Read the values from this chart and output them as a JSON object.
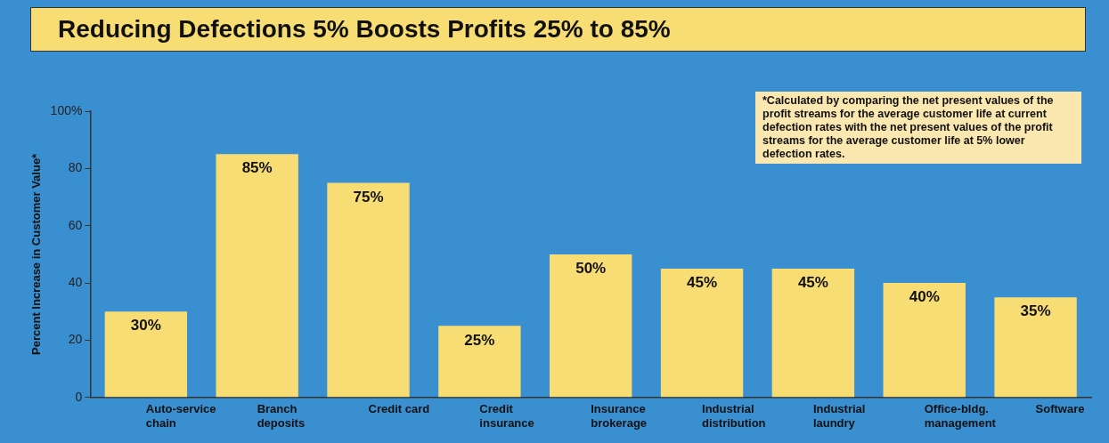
{
  "chart_data": {
    "type": "bar",
    "title": "Reducing Defections 5% Boosts Profits 25% to 85%",
    "ylabel": "Percent Increase in Customer Value*",
    "categories": [
      "Auto-service chain",
      "Branch deposits",
      "Credit card",
      "Credit insurance",
      "Insurance brokerage",
      "Industrial distribution",
      "Industrial laundry",
      "Office-bldg. management",
      "Software"
    ],
    "values": [
      30,
      85,
      75,
      25,
      50,
      45,
      45,
      40,
      35
    ],
    "value_labels": [
      "30%",
      "85%",
      "75%",
      "25%",
      "50%",
      "45%",
      "45%",
      "40%",
      "35%"
    ],
    "color": "#f8dc74",
    "ylim": [
      0,
      100
    ],
    "yticks": [
      0,
      20,
      40,
      60,
      80,
      {
        "value": 100,
        "label": "100%"
      }
    ],
    "grid": false,
    "legend": false,
    "annotations": [
      "*Calculated by comparing the net present values of the profit streams for the average customer life at current defection rates with the net present values of the profit streams for the average customer life at 5% lower defection rates."
    ]
  }
}
